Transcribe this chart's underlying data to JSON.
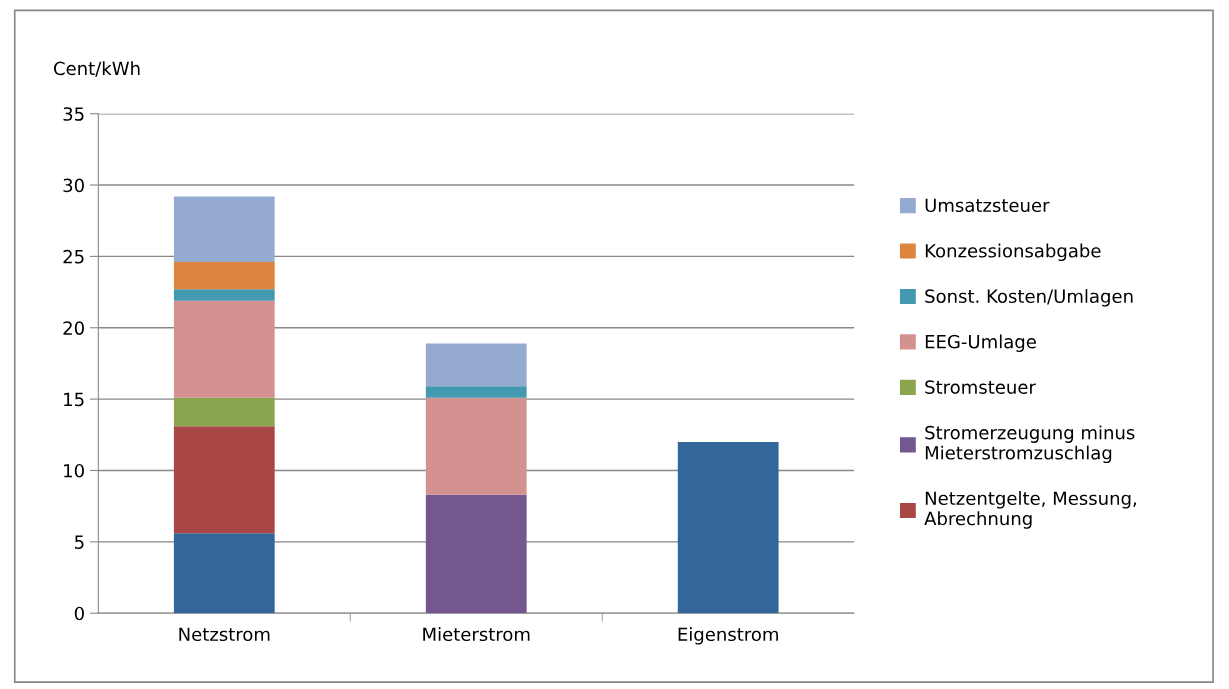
{
  "chart_data": {
    "type": "bar",
    "stacked": true,
    "ylabel": "Cent/kWh",
    "categories": [
      "Netzstrom",
      "Mieterstrom",
      "Eigenstrom"
    ],
    "series": [
      {
        "color": "#336699",
        "values": [
          5.6,
          null,
          12
        ]
      },
      {
        "name": "Netzentgelte, Messung,\nAbrechnung",
        "color": "#a84744",
        "values": [
          7.5,
          null,
          null
        ]
      },
      {
        "name": "Stromerzeugung minus\nMieterstromzuschlag",
        "color": "#73578e",
        "values": [
          null,
          8.3,
          null
        ]
      },
      {
        "name": "Stromsteuer",
        "color": "#8aa54e",
        "values": [
          2.0,
          null,
          null
        ]
      },
      {
        "name": "EEG-Umlage",
        "color": "#d39190",
        "values": [
          6.8,
          6.8,
          null
        ]
      },
      {
        "name": "Sonst. Kosten/Umlagen",
        "color": "#4299b0",
        "values": [
          0.8,
          0.8,
          null
        ]
      },
      {
        "name": "Konzessionsabgabe",
        "color": "#dd843f",
        "values": [
          1.9,
          null,
          null
        ]
      },
      {
        "name": "Umsatzsteuer",
        "color": "#94aad1",
        "values": [
          4.6,
          3.0,
          null
        ]
      }
    ],
    "ylim": [
      0,
      35
    ],
    "yticks": [
      0,
      5,
      10,
      15,
      20,
      25,
      30,
      35
    ],
    "grid": "y",
    "legend": "right"
  }
}
